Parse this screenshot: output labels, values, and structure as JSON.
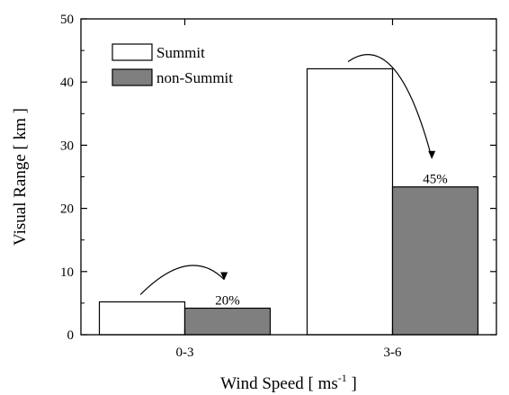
{
  "chart_data": {
    "type": "bar",
    "categories": [
      "0-3",
      "3-6"
    ],
    "series": [
      {
        "name": "Summit",
        "values": [
          5.2,
          42.1
        ],
        "color": "#ffffff"
      },
      {
        "name": "non-Summit",
        "values": [
          4.2,
          23.4
        ],
        "color": "#7f7f7f"
      }
    ],
    "ylabel": "Visual Range [ km ]",
    "xlabel": "Wind Speed [ ms-1 ]",
    "xlabel_parts": {
      "main": "Wind Speed [ ms",
      "sup": "-1",
      "close": " ]"
    },
    "ylim": [
      0,
      50
    ],
    "yticks": [
      0,
      10,
      20,
      30,
      40,
      50
    ],
    "grid": false,
    "legend_position": "top-left",
    "annotations": [
      {
        "category": "0-3",
        "text": "20%"
      },
      {
        "category": "3-6",
        "text": "45%"
      }
    ]
  }
}
